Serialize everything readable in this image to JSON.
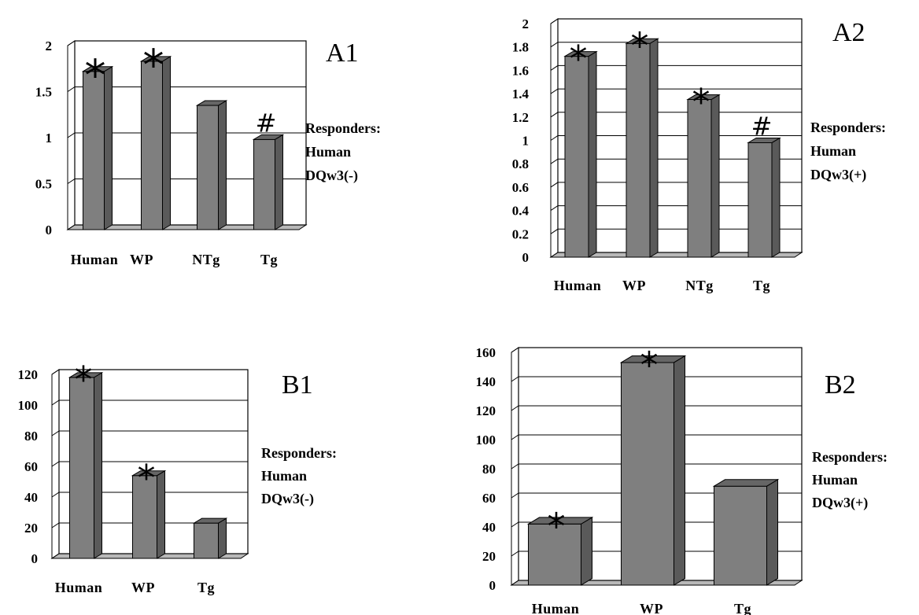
{
  "chart_data": [
    {
      "type": "bar",
      "panel_label": "A1",
      "categories": [
        "Human",
        "WP",
        "NTg",
        "Tg"
      ],
      "values": [
        1.72,
        1.83,
        1.35,
        0.98
      ],
      "annotations": [
        "*",
        "*",
        "",
        "#"
      ],
      "yticks": [
        "0",
        "0.5",
        "1",
        "1.5",
        "2"
      ],
      "ylim": [
        0,
        2
      ],
      "grid": true,
      "side_text": [
        "Responders:",
        "Human",
        "DQw3(-)"
      ]
    },
    {
      "type": "bar",
      "panel_label": "A2",
      "categories": [
        "Human",
        "WP",
        "NTg",
        "Tg"
      ],
      "values": [
        1.72,
        1.83,
        1.35,
        0.98
      ],
      "annotations": [
        "*",
        "*",
        "*",
        "#"
      ],
      "yticks": [
        "0",
        "0.2",
        "0.4",
        "0.6",
        "0.8",
        "1",
        "1.2",
        "1.4",
        "1.6",
        "1.8",
        "2"
      ],
      "ylim": [
        0,
        2
      ],
      "grid": true,
      "side_text": [
        "Responders:",
        "Human",
        "DQw3(+)"
      ]
    },
    {
      "type": "bar",
      "panel_label": "B1",
      "categories": [
        "Human",
        "WP",
        "Tg"
      ],
      "values": [
        118,
        54,
        23
      ],
      "annotations": [
        "*",
        "*",
        ""
      ],
      "yticks": [
        "0",
        "20",
        "40",
        "60",
        "80",
        "100",
        "120"
      ],
      "ylim": [
        0,
        120
      ],
      "grid": true,
      "side_text": [
        "Responders:",
        "Human",
        "DQw3(-)"
      ]
    },
    {
      "type": "bar",
      "panel_label": "B2",
      "categories": [
        "Human",
        "WP",
        "Tg"
      ],
      "values": [
        42,
        153,
        68
      ],
      "annotations": [
        "*",
        "*",
        ""
      ],
      "yticks": [
        "0",
        "20",
        "40",
        "60",
        "80",
        "100",
        "120",
        "140",
        "160"
      ],
      "ylim": [
        0,
        160
      ],
      "grid": true,
      "side_text": [
        "Responders:",
        "Human",
        "DQw3(+)"
      ]
    }
  ]
}
